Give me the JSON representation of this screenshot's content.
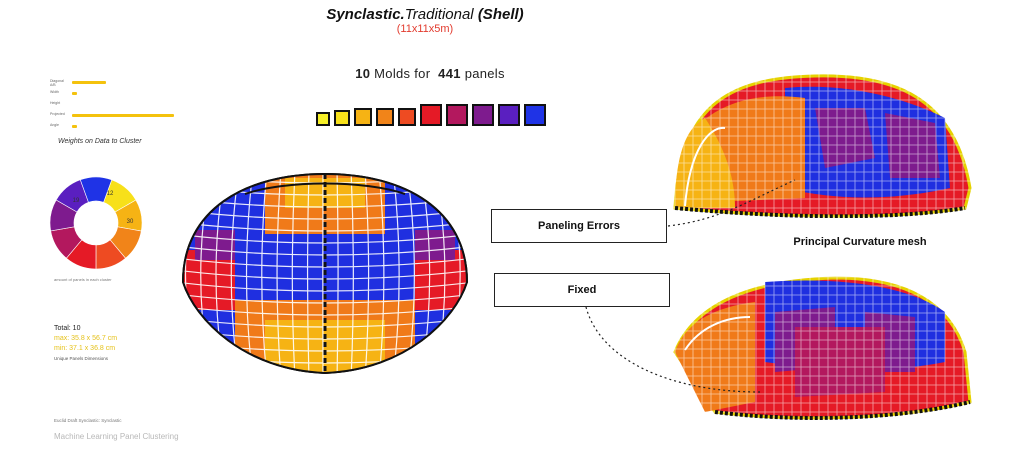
{
  "title": {
    "part1": "Synclastic.",
    "part2": "Traditional",
    "part3": "(Shell)"
  },
  "subtitle": "(11x11x5m)",
  "molds": {
    "count": "10",
    "text": "Molds for",
    "panels": "441",
    "panels_label": "panels"
  },
  "mold_colors": [
    "#f7f028",
    "#f7e01a",
    "#f6b314",
    "#f18419",
    "#ee4b22",
    "#e51a26",
    "#b3185e",
    "#7e1b8e",
    "#5a1fc0",
    "#1f33e6"
  ],
  "weights": {
    "items": [
      {
        "label": "Diagonal A/B",
        "value": 0.33
      },
      {
        "label": "Width",
        "value": 0.05
      },
      {
        "label": "Height",
        "value": 0
      },
      {
        "label": "Projected",
        "value": 1.0
      },
      {
        "label": "Angle",
        "value": 0.05
      }
    ],
    "caption": "Weights on Data to Cluster"
  },
  "donut": {
    "labels": [
      "19",
      "12",
      "30"
    ],
    "caption": "amount of panels in each cluster",
    "colors": [
      "#f7e01a",
      "#f6b314",
      "#f18419",
      "#ee4b22",
      "#e51a26",
      "#b3185e",
      "#7e1b8e",
      "#5a1fc0",
      "#1f33e6"
    ]
  },
  "stats": {
    "total": "Total: 10",
    "max": "max: 35.8 x 56.7 cm",
    "min": "min: 37.1 x 36.8 cm",
    "subtitle": "Unique Panels Dimensions"
  },
  "footnote": "Euclid Draft Synclastic: Synclastic",
  "ml_caption": "Machine Learning Panel Clustering",
  "callouts": {
    "errors": "Paneling Errors",
    "fixed": "Fixed"
  },
  "pcm_label": "Principal Curvature mesh"
}
